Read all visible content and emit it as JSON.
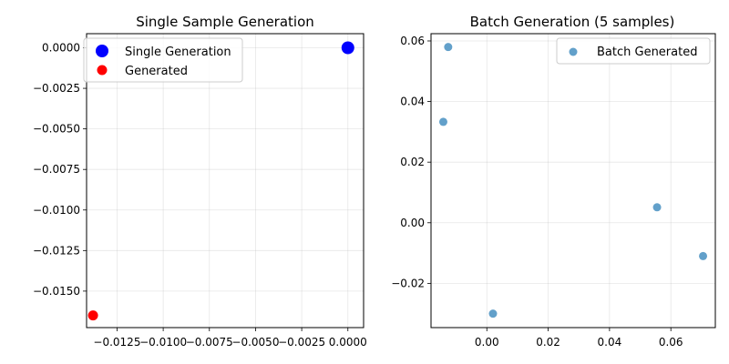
{
  "figure": {
    "background": "#ffffff"
  },
  "chart_data": [
    {
      "type": "scatter",
      "title": "Single Sample Generation",
      "xlabel": "",
      "ylabel": "",
      "xlim": [
        -0.01415,
        0.00085
      ],
      "ylim": [
        -0.01725,
        0.00087
      ],
      "x_ticks": [
        -0.0125,
        -0.01,
        -0.0075,
        -0.005,
        -0.0025,
        0.0
      ],
      "x_tick_labels": [
        "−0.0125",
        "−0.0100",
        "−0.0075",
        "−0.0050",
        "−0.0025",
        "0.0000"
      ],
      "y_ticks": [
        0.0,
        -0.0025,
        -0.005,
        -0.0075,
        -0.01,
        -0.0125,
        -0.015
      ],
      "y_tick_labels": [
        "0.0000",
        "−0.0025",
        "−0.0050",
        "−0.0075",
        "−0.0100",
        "−0.0125",
        "−0.0150"
      ],
      "grid": true,
      "legend_position": "upper-left",
      "series": [
        {
          "name": "Single Generation",
          "color": "#0000ff",
          "opacity": 1,
          "marker_size": "large",
          "x": [
            0.0
          ],
          "y": [
            0.0
          ]
        },
        {
          "name": "Generated",
          "color": "#ff0000",
          "opacity": 1,
          "marker_size": "medium",
          "x": [
            -0.0138
          ],
          "y": [
            -0.0165
          ]
        }
      ]
    },
    {
      "type": "scatter",
      "title": "Batch Generation (5 samples)",
      "xlabel": "",
      "ylabel": "",
      "xlim": [
        -0.0182,
        0.0745
      ],
      "ylim": [
        -0.0346,
        0.0624
      ],
      "x_ticks": [
        0.0,
        0.02,
        0.04,
        0.06
      ],
      "x_tick_labels": [
        "0.00",
        "0.02",
        "0.04",
        "0.06"
      ],
      "y_ticks": [
        0.06,
        0.04,
        0.02,
        0.0,
        -0.02
      ],
      "y_tick_labels": [
        "0.06",
        "0.04",
        "0.02",
        "0.00",
        "−0.02"
      ],
      "grid": true,
      "legend_position": "upper-right",
      "series": [
        {
          "name": "Batch Generated",
          "color": "#1f77b4",
          "opacity": 0.7,
          "marker_size": "small",
          "x": [
            -0.0126,
            -0.0142,
            0.002,
            0.0555,
            0.0705
          ],
          "y": [
            0.058,
            0.0333,
            -0.03,
            0.0051,
            -0.011
          ]
        }
      ]
    }
  ]
}
